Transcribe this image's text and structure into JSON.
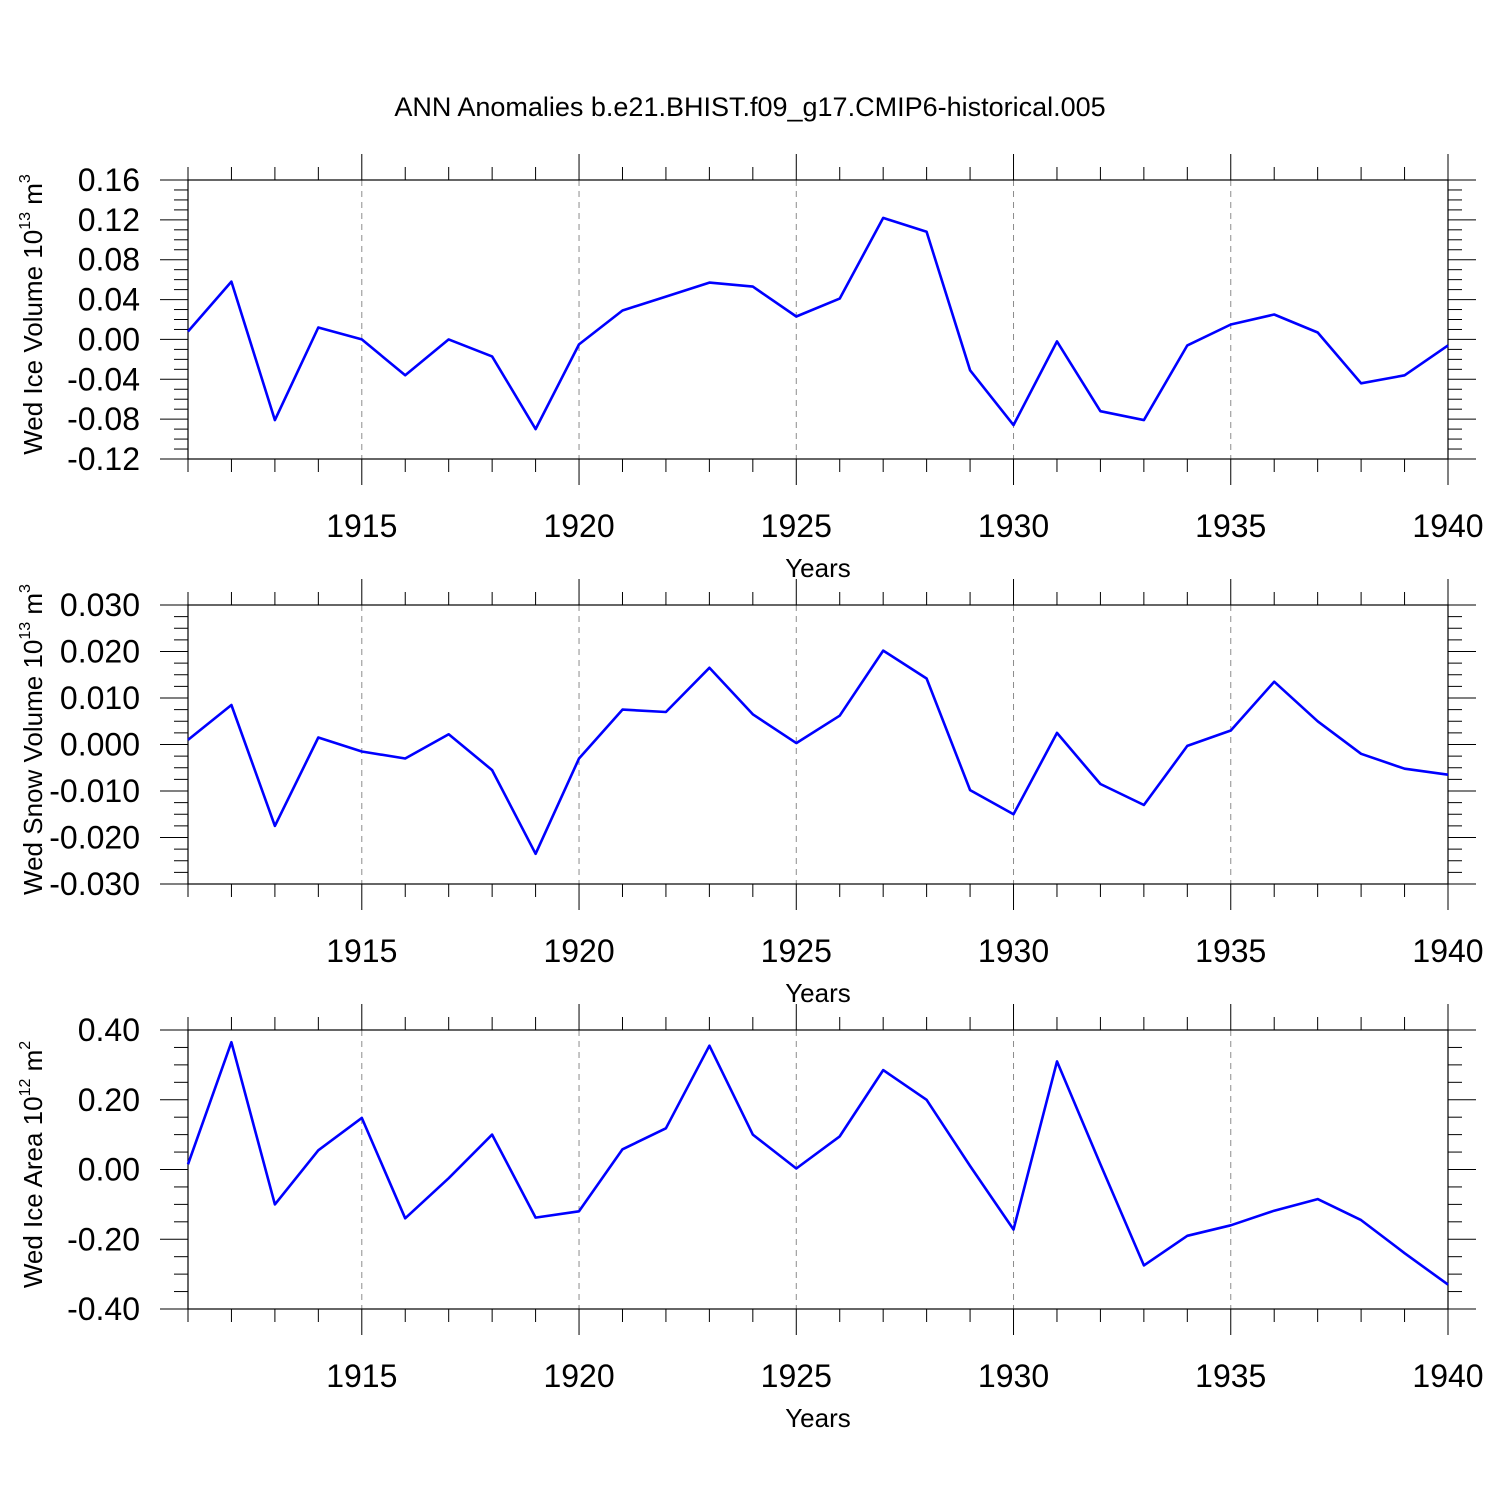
{
  "title": "ANN Anomalies b.e21.BHIST.f09_g17.CMIP6-historical.005",
  "colors": {
    "series": "#0000ff",
    "frame": "#000000",
    "grid": "#8c8c8c"
  },
  "chart_data": [
    {
      "type": "line",
      "ylabel_main": "Wed Ice Volume 10",
      "ylabel_exp": "13",
      "ylabel_unit": " m",
      "ylabel_unit_exp": "3",
      "xlabel": "Years",
      "xlim": [
        1911,
        1940
      ],
      "ylim": [
        -0.12,
        0.16
      ],
      "yticks": [
        0.16,
        0.12,
        0.08,
        0.04,
        0.0,
        -0.04,
        -0.08,
        -0.12
      ],
      "ytick_labels": [
        "0.16",
        "0.12",
        "0.08",
        "0.04",
        "0.00",
        "-0.04",
        "-0.08",
        "-0.12"
      ],
      "xticks": [
        1915,
        1920,
        1925,
        1930,
        1935,
        1940
      ],
      "xtick_labels": [
        "1915",
        "1920",
        "1925",
        "1930",
        "1935",
        "1940"
      ],
      "vgrid": [
        1915,
        1920,
        1925,
        1930,
        1935
      ],
      "x": [
        1911,
        1912,
        1913,
        1914,
        1915,
        1916,
        1917,
        1918,
        1919,
        1920,
        1921,
        1922,
        1923,
        1924,
        1925,
        1926,
        1927,
        1928,
        1929,
        1930,
        1931,
        1932,
        1933,
        1934,
        1935,
        1936,
        1937,
        1938,
        1939,
        1940
      ],
      "values": [
        0.008,
        0.058,
        -0.081,
        0.012,
        0.0,
        -0.036,
        0.0,
        -0.017,
        -0.09,
        -0.005,
        0.029,
        0.043,
        0.057,
        0.053,
        0.023,
        0.041,
        0.122,
        0.108,
        -0.031,
        -0.086,
        -0.002,
        -0.072,
        -0.081,
        -0.006,
        0.015,
        0.025,
        0.007,
        -0.044,
        -0.036,
        -0.006
      ]
    },
    {
      "type": "line",
      "ylabel_main": "Wed Snow Volume 10",
      "ylabel_exp": "13",
      "ylabel_unit": " m",
      "ylabel_unit_exp": "3",
      "xlabel": "Years",
      "xlim": [
        1911,
        1940
      ],
      "ylim": [
        -0.03,
        0.03
      ],
      "yticks": [
        0.03,
        0.02,
        0.01,
        0.0,
        -0.01,
        -0.02,
        -0.03
      ],
      "ytick_labels": [
        "0.030",
        "0.020",
        "0.010",
        "0.000",
        "-0.010",
        "-0.020",
        "-0.030"
      ],
      "xticks": [
        1915,
        1920,
        1925,
        1930,
        1935,
        1940
      ],
      "xtick_labels": [
        "1915",
        "1920",
        "1925",
        "1930",
        "1935",
        "1940"
      ],
      "vgrid": [
        1915,
        1920,
        1925,
        1930,
        1935
      ],
      "x": [
        1911,
        1912,
        1913,
        1914,
        1915,
        1916,
        1917,
        1918,
        1919,
        1920,
        1921,
        1922,
        1923,
        1924,
        1925,
        1926,
        1927,
        1928,
        1929,
        1930,
        1931,
        1932,
        1933,
        1934,
        1935,
        1936,
        1937,
        1938,
        1939,
        1940
      ],
      "values": [
        0.001,
        0.0085,
        -0.0175,
        0.0015,
        -0.0015,
        -0.003,
        0.0022,
        -0.0055,
        -0.0235,
        -0.003,
        0.0075,
        0.007,
        0.0165,
        0.0065,
        0.0003,
        0.0062,
        0.0202,
        0.0142,
        -0.0098,
        -0.015,
        0.0025,
        -0.0085,
        -0.013,
        -0.0003,
        0.003,
        0.0135,
        0.005,
        -0.002,
        -0.0052,
        -0.0065
      ]
    },
    {
      "type": "line",
      "ylabel_main": "Wed Ice Area 10",
      "ylabel_exp": "12",
      "ylabel_unit": " m",
      "ylabel_unit_exp": "2",
      "xlabel": "Years",
      "xlim": [
        1911,
        1940
      ],
      "ylim": [
        -0.4,
        0.4
      ],
      "yticks": [
        0.4,
        0.2,
        0.0,
        -0.2,
        -0.4
      ],
      "ytick_labels": [
        "0.40",
        "0.20",
        "0.00",
        "-0.20",
        "-0.40"
      ],
      "xticks": [
        1915,
        1920,
        1925,
        1930,
        1935,
        1940
      ],
      "xtick_labels": [
        "1915",
        "1920",
        "1925",
        "1930",
        "1935",
        "1940"
      ],
      "vgrid": [
        1915,
        1920,
        1925,
        1930,
        1935
      ],
      "x": [
        1911,
        1912,
        1913,
        1914,
        1915,
        1916,
        1917,
        1918,
        1919,
        1920,
        1921,
        1922,
        1923,
        1924,
        1925,
        1926,
        1927,
        1928,
        1929,
        1930,
        1931,
        1932,
        1933,
        1934,
        1935,
        1936,
        1937,
        1938,
        1939,
        1940
      ],
      "values": [
        0.015,
        0.365,
        -0.1,
        0.055,
        0.148,
        -0.14,
        -0.025,
        0.1,
        -0.138,
        -0.12,
        0.058,
        0.118,
        0.355,
        0.1,
        0.003,
        0.095,
        0.285,
        0.2,
        0.01,
        -0.172,
        0.31,
        0.015,
        -0.275,
        -0.19,
        -0.16,
        -0.118,
        -0.085,
        -0.145,
        -0.24,
        -0.33
      ]
    }
  ]
}
